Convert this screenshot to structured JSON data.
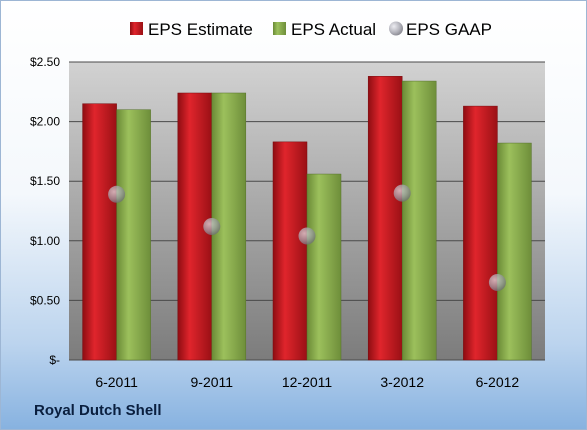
{
  "company": "Royal Dutch Shell",
  "colors": {
    "estimate": "#c8161d",
    "actual": "#8aac4e",
    "gaap": "#a9a9b3"
  },
  "chart_data": {
    "type": "bar",
    "categories": [
      "6-2011",
      "9-2011",
      "12-2011",
      "3-2012",
      "6-2012"
    ],
    "series": [
      {
        "name": "EPS Estimate",
        "type": "bar",
        "values": [
          2.15,
          2.24,
          1.83,
          2.38,
          2.13
        ]
      },
      {
        "name": "EPS Actual",
        "type": "bar",
        "values": [
          2.1,
          2.24,
          1.56,
          2.34,
          1.82
        ]
      },
      {
        "name": "EPS GAAP",
        "type": "scatter",
        "values": [
          1.39,
          1.12,
          1.04,
          1.4,
          0.65
        ]
      }
    ],
    "yticks": [
      "$-",
      "$0.50",
      "$1.00",
      "$1.50",
      "$2.00",
      "$2.50"
    ],
    "ylim": [
      0,
      2.5
    ],
    "grid": true,
    "legend": "top"
  }
}
